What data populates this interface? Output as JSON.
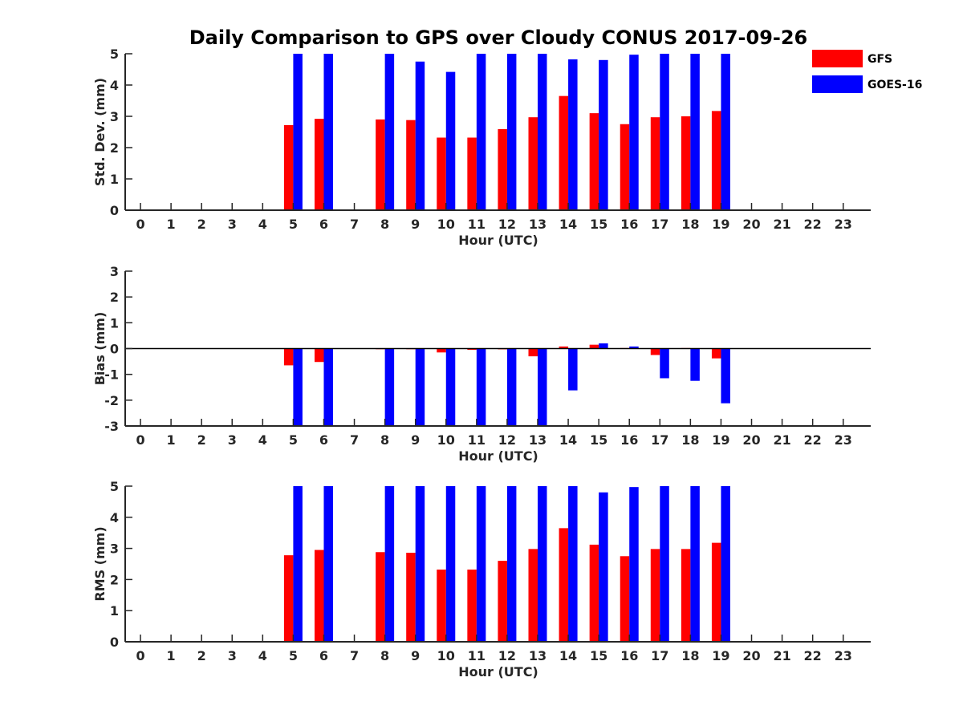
{
  "title": "Daily Comparison to GPS over Cloudy CONUS 2017-09-26",
  "legend": {
    "placement": "top-right",
    "items": [
      {
        "label": "GFS",
        "color": "#ff0000"
      },
      {
        "label": "GOES-16",
        "color": "#0000ff"
      }
    ]
  },
  "chart_data": [
    {
      "type": "bar",
      "ylabel": "Std. Dev. (mm)",
      "xlabel": "Hour (UTC)",
      "x": [
        0,
        1,
        2,
        3,
        4,
        5,
        6,
        7,
        8,
        9,
        10,
        11,
        12,
        13,
        14,
        15,
        16,
        17,
        18,
        19,
        20,
        21,
        22,
        23
      ],
      "xlim": [
        -0.5,
        23.9
      ],
      "ylim": [
        0,
        5
      ],
      "yticks": [
        0,
        1,
        2,
        3,
        4,
        5
      ],
      "grid": false,
      "series": [
        {
          "name": "GFS",
          "color": "#ff0000",
          "values": [
            null,
            null,
            null,
            null,
            null,
            2.72,
            2.92,
            null,
            2.9,
            2.88,
            2.32,
            2.32,
            2.59,
            2.97,
            3.65,
            3.1,
            2.75,
            2.97,
            3.0,
            3.17,
            null,
            null,
            null,
            null
          ]
        },
        {
          "name": "GOES-16",
          "color": "#0000ff",
          "values": [
            null,
            null,
            null,
            null,
            null,
            5.0,
            5.0,
            null,
            5.0,
            4.75,
            4.42,
            5.0,
            5.0,
            5.0,
            4.82,
            4.8,
            4.97,
            5.0,
            5.0,
            5.0,
            null,
            null,
            null,
            null
          ]
        }
      ]
    },
    {
      "type": "bar",
      "ylabel": "Bias (mm)",
      "xlabel": "Hour (UTC)",
      "x": [
        0,
        1,
        2,
        3,
        4,
        5,
        6,
        7,
        8,
        9,
        10,
        11,
        12,
        13,
        14,
        15,
        16,
        17,
        18,
        19,
        20,
        21,
        22,
        23
      ],
      "xlim": [
        -0.5,
        23.9
      ],
      "ylim": [
        -3,
        3
      ],
      "yticks": [
        -3,
        -2,
        -1,
        0,
        1,
        2,
        3
      ],
      "zero_line": true,
      "grid": false,
      "series": [
        {
          "name": "GFS",
          "color": "#ff0000",
          "values": [
            null,
            null,
            null,
            null,
            null,
            -0.65,
            -0.52,
            null,
            -0.02,
            -0.02,
            -0.15,
            -0.05,
            -0.03,
            -0.3,
            0.08,
            0.15,
            0.02,
            -0.25,
            0.02,
            -0.38,
            null,
            null,
            null,
            null
          ]
        },
        {
          "name": "GOES-16",
          "color": "#0000ff",
          "values": [
            null,
            null,
            null,
            null,
            null,
            -3.0,
            -3.0,
            null,
            -3.0,
            -3.0,
            -3.0,
            -3.0,
            -3.0,
            -3.0,
            -1.62,
            0.2,
            0.08,
            -1.15,
            -1.25,
            -2.12,
            null,
            null,
            null,
            null
          ]
        }
      ]
    },
    {
      "type": "bar",
      "ylabel": "RMS (mm)",
      "xlabel": "Hour (UTC)",
      "x": [
        0,
        1,
        2,
        3,
        4,
        5,
        6,
        7,
        8,
        9,
        10,
        11,
        12,
        13,
        14,
        15,
        16,
        17,
        18,
        19,
        20,
        21,
        22,
        23
      ],
      "xlim": [
        -0.5,
        23.9
      ],
      "ylim": [
        0,
        5
      ],
      "yticks": [
        0,
        1,
        2,
        3,
        4,
        5
      ],
      "grid": false,
      "series": [
        {
          "name": "GFS",
          "color": "#ff0000",
          "values": [
            null,
            null,
            null,
            null,
            null,
            2.78,
            2.95,
            null,
            2.88,
            2.86,
            2.32,
            2.32,
            2.6,
            2.98,
            3.65,
            3.12,
            2.75,
            2.98,
            2.98,
            3.18,
            null,
            null,
            null,
            null
          ]
        },
        {
          "name": "GOES-16",
          "color": "#0000ff",
          "values": [
            null,
            null,
            null,
            null,
            null,
            5.0,
            5.0,
            null,
            5.0,
            5.0,
            5.0,
            5.0,
            5.0,
            5.0,
            5.0,
            4.8,
            4.97,
            5.0,
            5.0,
            5.0,
            null,
            null,
            null,
            null
          ]
        }
      ]
    }
  ]
}
